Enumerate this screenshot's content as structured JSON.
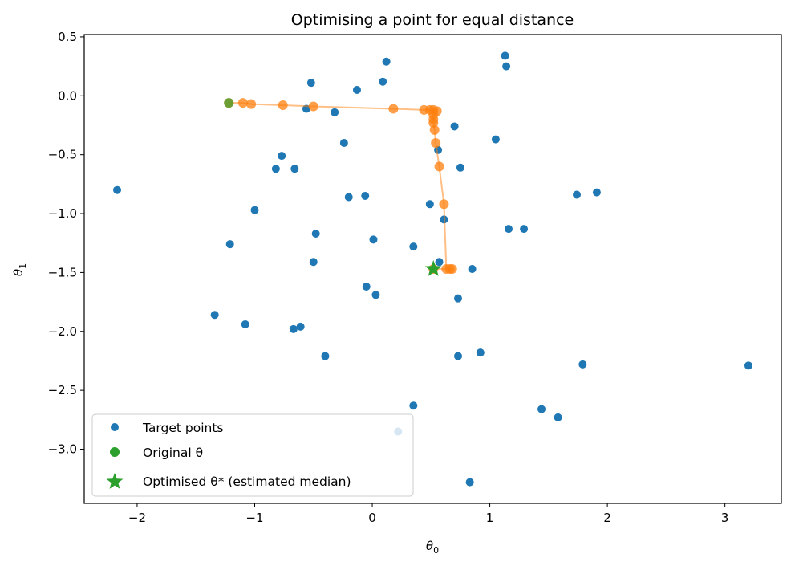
{
  "chart_data": {
    "type": "scatter",
    "title": "Optimising a point for equal distance",
    "xlabel": "θ",
    "xlabel_sub": "0",
    "ylabel": "θ",
    "ylabel_sub": "1",
    "xlim": [
      -2.45,
      3.48
    ],
    "ylim": [
      -3.46,
      0.52
    ],
    "xticks": [
      -2,
      -1,
      0,
      1,
      2,
      3
    ],
    "yticks": [
      0.5,
      0.0,
      -0.5,
      -1.0,
      -1.5,
      -2.0,
      -2.5,
      -3.0
    ],
    "ytick_labels": [
      "0.5",
      "0.0",
      "−0.5",
      "−1.0",
      "−1.5",
      "−2.0",
      "−2.5",
      "−3.0"
    ],
    "xtick_labels": [
      "−2",
      "−1",
      "0",
      "1",
      "2",
      "3"
    ],
    "grid": false,
    "legend_position": "bottom-left",
    "colors": {
      "target": "#1f77b4",
      "path": "#ff7f0e",
      "original": "#2ca02c",
      "optimised": "#2ca02c"
    },
    "series": [
      {
        "name": "Target points",
        "marker": "circle",
        "points": [
          [
            0.12,
            0.29
          ],
          [
            1.13,
            0.34
          ],
          [
            1.14,
            0.25
          ],
          [
            -0.52,
            0.11
          ],
          [
            -0.13,
            0.05
          ],
          [
            0.09,
            0.12
          ],
          [
            -0.56,
            -0.11
          ],
          [
            -0.32,
            -0.14
          ],
          [
            0.7,
            -0.26
          ],
          [
            1.05,
            -0.37
          ],
          [
            -0.24,
            -0.4
          ],
          [
            0.56,
            -0.46
          ],
          [
            -0.77,
            -0.51
          ],
          [
            -0.82,
            -0.62
          ],
          [
            -0.66,
            -0.62
          ],
          [
            0.75,
            -0.61
          ],
          [
            -2.17,
            -0.8
          ],
          [
            -0.2,
            -0.86
          ],
          [
            -0.06,
            -0.85
          ],
          [
            1.74,
            -0.84
          ],
          [
            1.91,
            -0.82
          ],
          [
            -1.0,
            -0.97
          ],
          [
            0.49,
            -0.92
          ],
          [
            0.61,
            -1.05
          ],
          [
            1.16,
            -1.13
          ],
          [
            1.29,
            -1.13
          ],
          [
            -0.48,
            -1.17
          ],
          [
            0.01,
            -1.22
          ],
          [
            -1.21,
            -1.26
          ],
          [
            0.35,
            -1.28
          ],
          [
            -0.5,
            -1.41
          ],
          [
            0.57,
            -1.41
          ],
          [
            0.85,
            -1.47
          ],
          [
            -0.05,
            -1.62
          ],
          [
            0.03,
            -1.69
          ],
          [
            0.73,
            -1.72
          ],
          [
            -1.34,
            -1.86
          ],
          [
            -1.08,
            -1.94
          ],
          [
            -0.67,
            -1.98
          ],
          [
            -0.61,
            -1.96
          ],
          [
            -0.4,
            -2.21
          ],
          [
            0.73,
            -2.21
          ],
          [
            0.92,
            -2.18
          ],
          [
            1.79,
            -2.28
          ],
          [
            3.2,
            -2.29
          ],
          [
            1.44,
            -2.66
          ],
          [
            1.58,
            -2.73
          ],
          [
            0.35,
            -2.63
          ],
          [
            0.22,
            -2.85
          ],
          [
            0.83,
            -3.28
          ]
        ]
      },
      {
        "name": "Original θ",
        "marker": "circle",
        "points": [
          [
            -1.22,
            -0.06
          ]
        ]
      },
      {
        "name": "Optimised θ* (estimated median)",
        "marker": "star",
        "points": [
          [
            0.52,
            -1.47
          ]
        ]
      }
    ],
    "optimisation_path": [
      [
        -1.22,
        -0.06
      ],
      [
        -1.1,
        -0.06
      ],
      [
        -1.03,
        -0.07
      ],
      [
        -0.76,
        -0.08
      ],
      [
        -0.5,
        -0.09
      ],
      [
        0.18,
        -0.11
      ],
      [
        0.44,
        -0.12
      ],
      [
        0.49,
        -0.12
      ],
      [
        0.52,
        -0.12
      ],
      [
        0.55,
        -0.13
      ],
      [
        0.52,
        -0.16
      ],
      [
        0.52,
        -0.2
      ],
      [
        0.52,
        -0.23
      ],
      [
        0.53,
        -0.29
      ],
      [
        0.54,
        -0.4
      ],
      [
        0.57,
        -0.6
      ],
      [
        0.61,
        -0.92
      ],
      [
        0.63,
        -1.47
      ],
      [
        0.66,
        -1.47
      ],
      [
        0.68,
        -1.47
      ],
      [
        0.52,
        -1.47
      ]
    ],
    "legend": [
      {
        "label": "Target points",
        "marker": "circle",
        "color": "#1f77b4"
      },
      {
        "label": "Original θ",
        "marker": "circle",
        "color": "#2ca02c"
      },
      {
        "label": "Optimised θ* (estimated median)",
        "marker": "star",
        "color": "#2ca02c"
      }
    ]
  }
}
